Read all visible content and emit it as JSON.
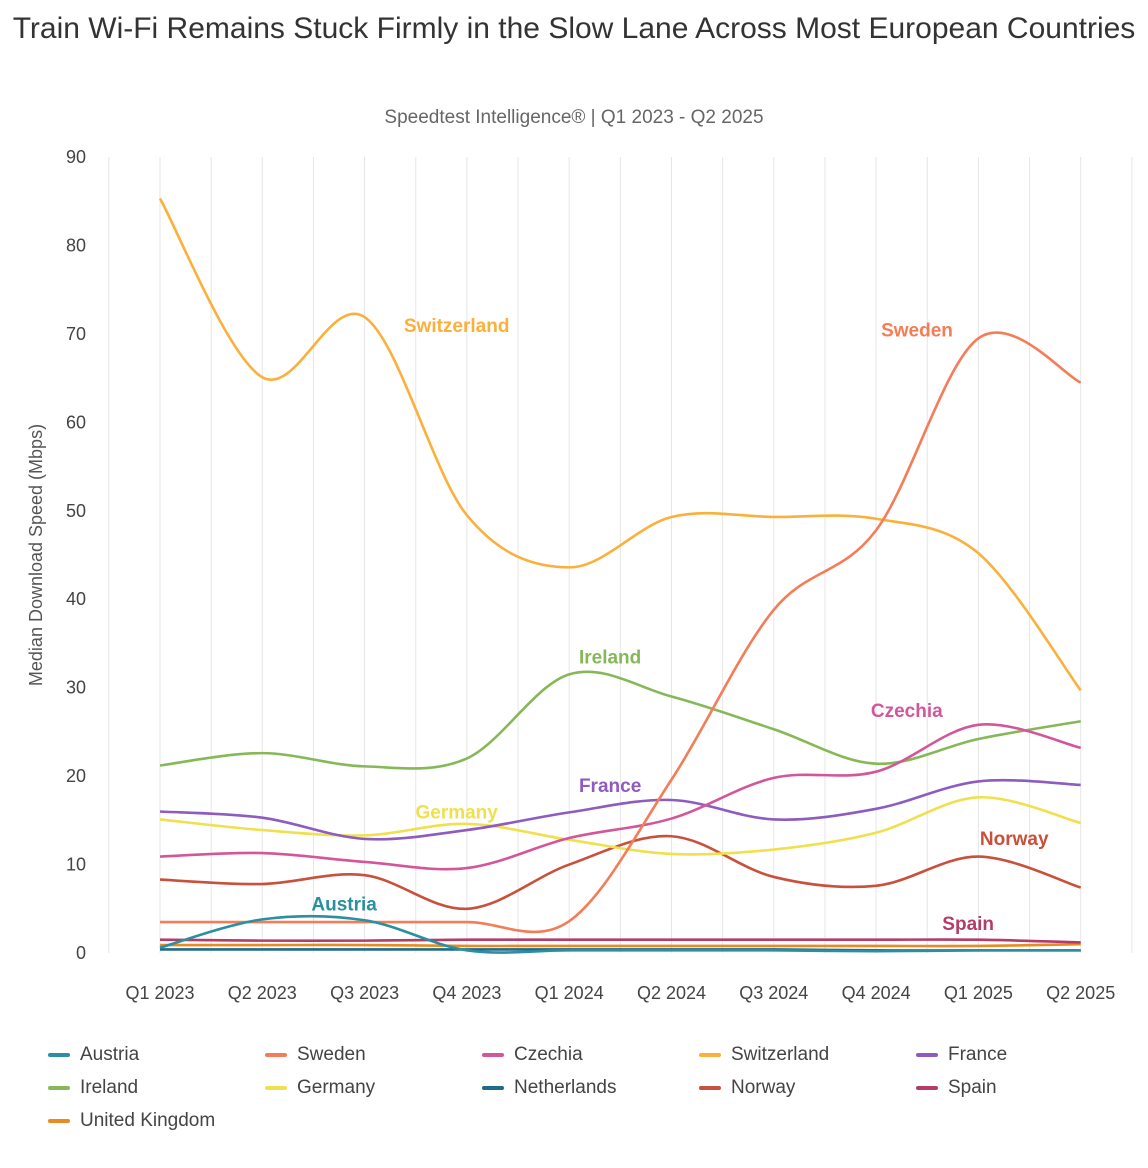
{
  "chart_data": {
    "type": "line",
    "title": "Train Wi-Fi Remains Stuck Firmly in the Slow Lane Across Most European Countries",
    "subtitle": "Speedtest Intelligence® | Q1 2023 - Q2 2025",
    "xlabel": "",
    "ylabel": "Median Download Speed (Mbps)",
    "ylim": [
      0,
      90
    ],
    "yticks": [
      0,
      10,
      20,
      30,
      40,
      50,
      60,
      70,
      80,
      90
    ],
    "grid": "vertical",
    "legend": "bottom",
    "categories": [
      "Q1 2023",
      "Q2 2023",
      "Q3 2023",
      "Q4 2023",
      "Q1 2024",
      "Q2 2024",
      "Q3 2024",
      "Q4 2024",
      "Q1 2025",
      "Q2 2025"
    ],
    "series": [
      {
        "name": "Austria",
        "color": "#2a8fa0",
        "values": [
          0.6,
          3.8,
          3.7,
          0.3,
          0.3,
          0.3,
          0.3,
          0.2,
          0.3,
          0.3
        ]
      },
      {
        "name": "Sweden",
        "color": "#f47c56",
        "values": [
          3.5,
          3.5,
          3.5,
          3.5,
          3.6,
          19.6,
          38.8,
          47.8,
          69.5,
          64.5
        ]
      },
      {
        "name": "Czechia",
        "color": "#d4569a",
        "values": [
          10.9,
          11.3,
          10.3,
          9.6,
          13.0,
          15.2,
          19.8,
          20.5,
          25.8,
          23.2
        ]
      },
      {
        "name": "Switzerland",
        "color": "#fbb03b",
        "values": [
          85.3,
          65.1,
          71.9,
          49.5,
          43.6,
          49.3,
          49.3,
          49.1,
          45.2,
          29.7
        ]
      },
      {
        "name": "France",
        "color": "#8e5bbf",
        "values": [
          16.0,
          15.3,
          12.9,
          13.9,
          15.9,
          17.3,
          15.1,
          16.3,
          19.4,
          19.0
        ]
      },
      {
        "name": "Ireland",
        "color": "#86b858",
        "values": [
          21.2,
          22.6,
          21.1,
          22.0,
          31.5,
          29.0,
          25.3,
          21.4,
          24.2,
          26.2
        ]
      },
      {
        "name": "Germany",
        "color": "#f0e04e",
        "values": [
          15.1,
          13.9,
          13.3,
          14.6,
          12.8,
          11.2,
          11.7,
          13.6,
          17.6,
          14.7
        ]
      },
      {
        "name": "Netherlands",
        "color": "#1e6b8c",
        "values": [
          0.4,
          0.4,
          0.4,
          0.4,
          0.4,
          0.4,
          0.4,
          0.3,
          0.3,
          0.3
        ]
      },
      {
        "name": "Norway",
        "color": "#c9503a",
        "values": [
          8.3,
          7.8,
          8.8,
          5.0,
          10.0,
          13.2,
          8.6,
          7.6,
          10.9,
          7.4
        ]
      },
      {
        "name": "Spain",
        "color": "#b43c6a",
        "values": [
          1.5,
          1.4,
          1.4,
          1.5,
          1.5,
          1.5,
          1.5,
          1.5,
          1.5,
          1.2
        ]
      },
      {
        "name": "United Kingdom",
        "color": "#e88b22",
        "values": [
          0.9,
          0.9,
          0.9,
          0.8,
          0.8,
          0.8,
          0.8,
          0.8,
          0.8,
          1.0
        ]
      }
    ],
    "annotations": [
      "Switzerland",
      "Sweden",
      "Ireland",
      "Czechia",
      "France",
      "Germany",
      "Norway",
      "Austria",
      "Spain"
    ]
  }
}
